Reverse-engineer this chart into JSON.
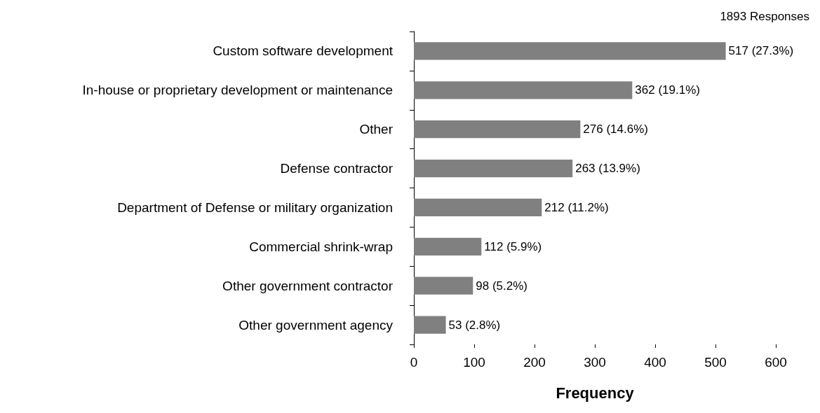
{
  "chart_data": {
    "type": "bar",
    "orientation": "horizontal",
    "title": "1893 Responses",
    "xlabel": "Frequency",
    "categories": [
      "Custom software development",
      "In-house or proprietary development or maintenance",
      "Other",
      "Defense contractor",
      "Department of Defense or military organization",
      "Commercial shrink-wrap",
      "Other government contractor",
      "Other government agency"
    ],
    "values": [
      517,
      362,
      276,
      263,
      212,
      112,
      98,
      53
    ],
    "value_labels": [
      "517 (27.3%)",
      "362 (19.1%)",
      "276 (14.6%)",
      "263 (13.9%)",
      "212 (11.2%)",
      "112 (5.9%)",
      "98 (5.2%)",
      "53 (2.8%)"
    ],
    "color": "#808080",
    "xlim": [
      0,
      600
    ],
    "xticks": [
      0,
      100,
      200,
      300,
      400,
      500,
      600
    ],
    "grid": false
  }
}
